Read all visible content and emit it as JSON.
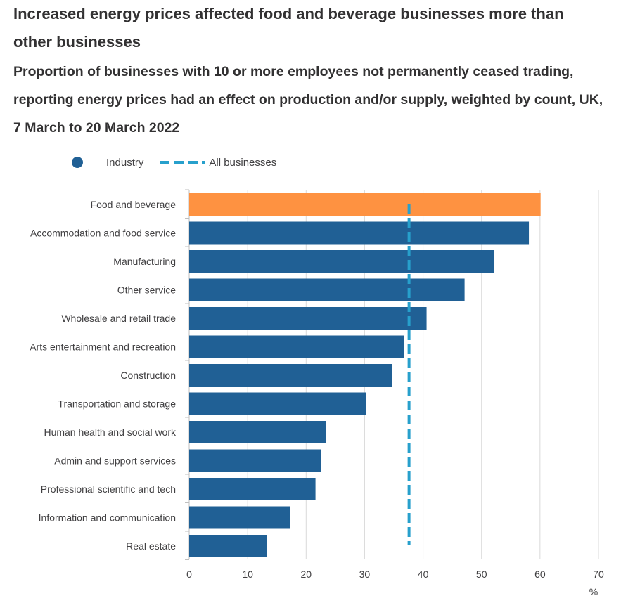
{
  "title": "Increased energy prices affected food and beverage businesses more than other businesses",
  "subtitle": "Proportion of businesses with 10 or more employees not permanently ceased trading, reporting energy prices had an effect on production and/or supply, weighted by count, UK, 7 March to 20 March 2022",
  "legend": {
    "industry_label": "Industry",
    "all_label": "All businesses"
  },
  "colors": {
    "bar": "#206095",
    "highlight": "#fe9241",
    "reference": "#27a0cc",
    "grid": "#d9d9d9"
  },
  "chart_data": {
    "type": "bar",
    "orientation": "horizontal",
    "title": "Proportion of businesses with 10 or more employees not permanently ceased trading, reporting energy prices had an effect on production and/or supply, weighted by count, UK, 7 March to 20 March 2022",
    "xlabel": "%",
    "ylabel": "",
    "xlim": [
      0,
      70
    ],
    "xticks": [
      0,
      10,
      20,
      30,
      40,
      50,
      60,
      70
    ],
    "grid": true,
    "legend_position": "top-left",
    "categories": [
      "Food and beverage",
      "Accommodation and food service",
      "Manufacturing",
      "Other service",
      "Wholesale and retail trade",
      "Arts entertainment and recreation",
      "Construction",
      "Transportation and storage",
      "Human health and social work",
      "Admin and support services",
      "Professional scientific and tech",
      "Information and communication",
      "Real estate"
    ],
    "values": [
      60.1,
      58.1,
      52.2,
      47.1,
      40.6,
      36.7,
      34.7,
      30.3,
      23.4,
      22.6,
      21.6,
      17.3,
      13.3
    ],
    "highlight_index": 0,
    "reference_line": {
      "name": "All businesses",
      "value": 37.6
    }
  }
}
